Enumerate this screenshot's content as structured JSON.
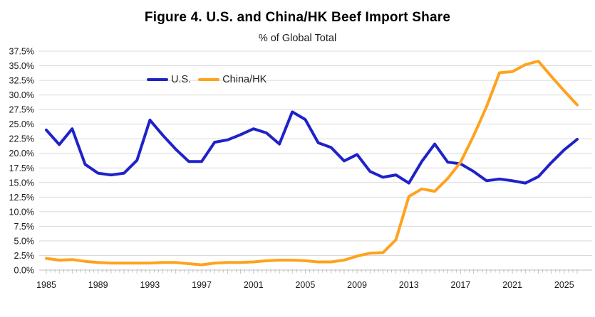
{
  "chart_data": {
    "type": "line",
    "title": "Figure 4. U.S. and China/HK Beef Import Share",
    "subtitle": "% of Global Total",
    "x": [
      1985,
      1986,
      1987,
      1988,
      1989,
      1990,
      1991,
      1992,
      1993,
      1994,
      1995,
      1996,
      1997,
      1998,
      1999,
      2000,
      2001,
      2002,
      2003,
      2004,
      2005,
      2006,
      2007,
      2008,
      2009,
      2010,
      2011,
      2012,
      2013,
      2014,
      2015,
      2016,
      2017,
      2018,
      2019,
      2020,
      2021,
      2022,
      2023,
      2024,
      2025,
      2026
    ],
    "series": [
      {
        "name": "U.S.",
        "color": "#1f22c8",
        "values": [
          24.0,
          21.5,
          24.2,
          18.1,
          16.6,
          16.3,
          16.6,
          18.8,
          25.7,
          23.1,
          20.7,
          18.6,
          18.6,
          21.9,
          22.3,
          23.2,
          24.2,
          23.5,
          21.6,
          27.1,
          25.8,
          21.8,
          21.0,
          18.7,
          19.8,
          16.9,
          15.9,
          16.3,
          14.9,
          18.6,
          21.6,
          18.5,
          18.2,
          16.9,
          15.3,
          15.6,
          15.3,
          14.9,
          16.0,
          18.4,
          20.6,
          22.4
        ]
      },
      {
        "name": "China/HK",
        "color": "#ffa21e",
        "values": [
          2.0,
          1.7,
          1.8,
          1.5,
          1.3,
          1.2,
          1.2,
          1.2,
          1.2,
          1.3,
          1.3,
          1.1,
          0.9,
          1.2,
          1.3,
          1.3,
          1.4,
          1.6,
          1.7,
          1.7,
          1.6,
          1.4,
          1.4,
          1.7,
          2.4,
          2.9,
          3.0,
          5.2,
          12.6,
          13.9,
          13.5,
          15.7,
          18.5,
          23.0,
          28.0,
          33.8,
          34.0,
          35.2,
          35.8,
          33.2,
          30.7,
          28.3
        ]
      }
    ],
    "ylim": [
      0,
      37.5
    ],
    "ytick_step": 2.5,
    "ytick_labels": [
      "0.0%",
      "2.5%",
      "5.0%",
      "7.5%",
      "10.0%",
      "12.5%",
      "15.0%",
      "17.5%",
      "20.0%",
      "22.5%",
      "25.0%",
      "27.5%",
      "30.0%",
      "32.5%",
      "35.0%",
      "37.5%"
    ],
    "xtick_labels": [
      "1985",
      "1989",
      "1993",
      "1997",
      "2001",
      "2005",
      "2009",
      "2013",
      "2017",
      "2021",
      "2025"
    ],
    "grid": "horizontal",
    "legend_position": "inside-top-left",
    "gridline_color": "#d9d9d9",
    "axis_line_color": "#c2c2c2",
    "tick_color": "#c2c2c2",
    "label_color": "#1a1a1a"
  }
}
